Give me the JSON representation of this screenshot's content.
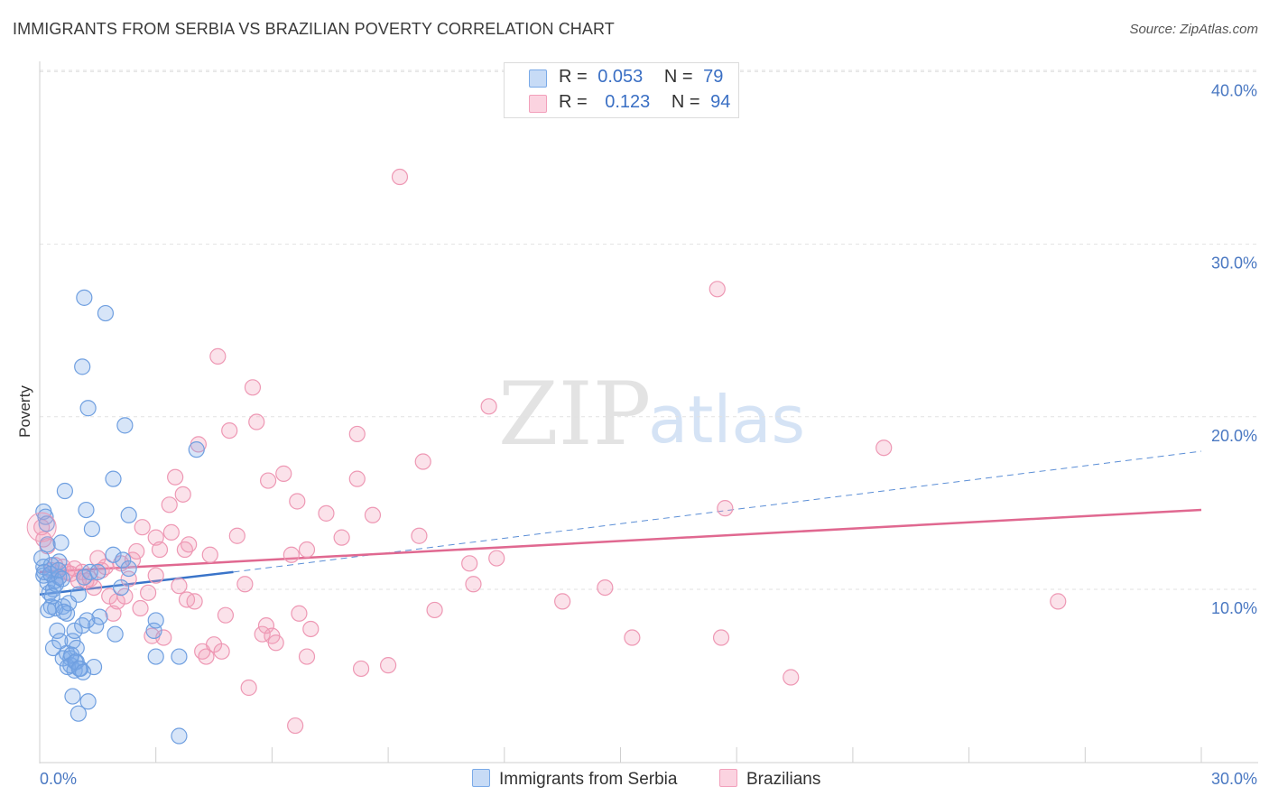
{
  "title": "IMMIGRANTS FROM SERBIA VS BRAZILIAN POVERTY CORRELATION CHART",
  "source": "Source: ZipAtlas.com",
  "watermark": {
    "zip": "ZIP",
    "atlas": "atlas"
  },
  "legend": {
    "rows": [
      {
        "r_label": "R =",
        "r_value": "0.053",
        "n_label": "N =",
        "n_value": "79",
        "color": "#7aaae8"
      },
      {
        "r_label": "R =",
        "r_value": "0.123",
        "n_label": "N =",
        "n_value": "94",
        "color": "#f2a0bb"
      }
    ]
  },
  "bottom_legend": [
    {
      "label": "Immigrants from Serbia",
      "color": "#7aaae8"
    },
    {
      "label": "Brazilians",
      "color": "#f2a0bb"
    }
  ],
  "chart_data": {
    "type": "scatter",
    "title": "IMMIGRANTS FROM SERBIA VS BRAZILIAN POVERTY CORRELATION CHART",
    "xlabel": "",
    "ylabel": "Poverty",
    "xlim": [
      0,
      30
    ],
    "ylim": [
      0,
      40
    ],
    "x_tick_labels": [
      "0.0%",
      "30.0%"
    ],
    "y_ticks": [
      10,
      20,
      30,
      40
    ],
    "y_tick_labels": [
      "10.0%",
      "20.0%",
      "30.0%",
      "40.0%"
    ],
    "grid": true,
    "series": [
      {
        "name": "Immigrants from Serbia",
        "color": "#7aaae8",
        "line_color": "#3a74c9",
        "trend": {
          "x0": 0,
          "y0": 9.7,
          "x1": 5.0,
          "y1": 11.0,
          "dashed_to_x": 30,
          "dashed_to_y": 18.0
        },
        "points": [
          [
            0.1,
            14.5
          ],
          [
            0.1,
            11.3
          ],
          [
            0.1,
            10.8
          ],
          [
            0.15,
            14.2
          ],
          [
            0.2,
            12.6
          ],
          [
            0.2,
            10.4
          ],
          [
            0.25,
            9.8
          ],
          [
            0.3,
            9.0
          ],
          [
            0.3,
            11.4
          ],
          [
            0.35,
            10.0
          ],
          [
            0.35,
            6.6
          ],
          [
            0.4,
            10.5
          ],
          [
            0.4,
            8.9
          ],
          [
            0.45,
            7.6
          ],
          [
            0.5,
            11.6
          ],
          [
            0.5,
            10.7
          ],
          [
            0.55,
            12.7
          ],
          [
            0.6,
            9.0
          ],
          [
            0.6,
            6.0
          ],
          [
            0.65,
            15.7
          ],
          [
            0.7,
            8.6
          ],
          [
            0.7,
            6.3
          ],
          [
            0.75,
            9.2
          ],
          [
            0.8,
            6.0
          ],
          [
            0.8,
            5.6
          ],
          [
            0.85,
            7.0
          ],
          [
            0.85,
            3.8
          ],
          [
            0.9,
            7.6
          ],
          [
            0.9,
            5.3
          ],
          [
            0.95,
            6.6
          ],
          [
            0.95,
            5.8
          ],
          [
            1.0,
            9.7
          ],
          [
            1.0,
            2.8
          ],
          [
            1.05,
            5.4
          ],
          [
            1.1,
            22.9
          ],
          [
            1.1,
            7.9
          ],
          [
            1.15,
            26.9
          ],
          [
            1.15,
            10.7
          ],
          [
            1.2,
            14.6
          ],
          [
            1.25,
            20.5
          ],
          [
            1.25,
            3.5
          ],
          [
            1.3,
            11.0
          ],
          [
            1.35,
            13.5
          ],
          [
            1.4,
            5.5
          ],
          [
            1.45,
            7.9
          ],
          [
            1.5,
            11.0
          ],
          [
            1.55,
            8.4
          ],
          [
            1.7,
            26.0
          ],
          [
            1.9,
            12.0
          ],
          [
            1.9,
            16.4
          ],
          [
            1.95,
            7.4
          ],
          [
            2.1,
            10.1
          ],
          [
            2.15,
            11.7
          ],
          [
            2.2,
            19.5
          ],
          [
            2.3,
            11.2
          ],
          [
            2.3,
            14.3
          ],
          [
            2.95,
            7.6
          ],
          [
            3.0,
            8.2
          ],
          [
            3.0,
            6.1
          ],
          [
            3.6,
            6.1
          ],
          [
            3.6,
            1.5
          ],
          [
            4.05,
            18.1
          ],
          [
            0.05,
            11.8
          ],
          [
            0.12,
            11.0
          ],
          [
            0.22,
            8.8
          ],
          [
            0.32,
            9.6
          ],
          [
            0.42,
            10.3
          ],
          [
            0.52,
            7.0
          ],
          [
            0.62,
            8.7
          ],
          [
            0.72,
            5.5
          ],
          [
            0.82,
            6.2
          ],
          [
            0.92,
            5.8
          ],
          [
            1.02,
            5.4
          ],
          [
            1.12,
            5.2
          ],
          [
            1.22,
            8.2
          ],
          [
            0.18,
            13.8
          ],
          [
            0.28,
            10.9
          ],
          [
            0.48,
            11.1
          ],
          [
            0.58,
            10.6
          ]
        ]
      },
      {
        "name": "Brazilians",
        "color": "#f2a0bb",
        "line_color": "#e06890",
        "trend": {
          "x0": 0,
          "y0": 11.0,
          "x1": 30,
          "y1": 14.6
        },
        "points": [
          [
            0.05,
            13.6
          ],
          [
            0.1,
            12.9
          ],
          [
            0.2,
            12.5
          ],
          [
            0.3,
            11.1
          ],
          [
            0.5,
            10.7
          ],
          [
            0.6,
            11.3
          ],
          [
            0.7,
            11.0
          ],
          [
            0.8,
            10.9
          ],
          [
            0.9,
            11.2
          ],
          [
            1.0,
            10.5
          ],
          [
            1.1,
            11.0
          ],
          [
            1.2,
            10.5
          ],
          [
            1.3,
            10.6
          ],
          [
            1.4,
            10.1
          ],
          [
            1.5,
            11.8
          ],
          [
            1.6,
            11.1
          ],
          [
            1.7,
            11.3
          ],
          [
            1.8,
            9.6
          ],
          [
            1.9,
            8.6
          ],
          [
            2.0,
            9.3
          ],
          [
            2.1,
            11.5
          ],
          [
            2.2,
            9.6
          ],
          [
            2.3,
            10.6
          ],
          [
            2.4,
            11.7
          ],
          [
            2.5,
            12.2
          ],
          [
            2.6,
            8.9
          ],
          [
            2.65,
            13.6
          ],
          [
            2.8,
            9.8
          ],
          [
            2.9,
            7.3
          ],
          [
            3.0,
            10.8
          ],
          [
            3.0,
            13.0
          ],
          [
            3.1,
            12.3
          ],
          [
            3.2,
            7.2
          ],
          [
            3.35,
            14.9
          ],
          [
            3.4,
            13.3
          ],
          [
            3.5,
            16.5
          ],
          [
            3.6,
            10.2
          ],
          [
            3.7,
            15.5
          ],
          [
            3.75,
            12.3
          ],
          [
            3.8,
            9.4
          ],
          [
            3.85,
            12.6
          ],
          [
            4.0,
            9.3
          ],
          [
            4.1,
            18.4
          ],
          [
            4.2,
            6.4
          ],
          [
            4.3,
            6.1
          ],
          [
            4.4,
            12.0
          ],
          [
            4.5,
            6.8
          ],
          [
            4.6,
            23.5
          ],
          [
            4.7,
            6.4
          ],
          [
            4.8,
            8.5
          ],
          [
            4.9,
            19.2
          ],
          [
            5.1,
            13.1
          ],
          [
            5.3,
            10.3
          ],
          [
            5.4,
            4.3
          ],
          [
            5.5,
            21.7
          ],
          [
            5.6,
            19.7
          ],
          [
            5.75,
            7.4
          ],
          [
            5.85,
            7.9
          ],
          [
            5.9,
            16.3
          ],
          [
            6.0,
            7.3
          ],
          [
            6.1,
            6.9
          ],
          [
            6.3,
            16.7
          ],
          [
            6.5,
            12.0
          ],
          [
            6.6,
            2.1
          ],
          [
            6.65,
            15.1
          ],
          [
            6.7,
            8.6
          ],
          [
            6.9,
            12.3
          ],
          [
            6.9,
            6.1
          ],
          [
            7.0,
            7.7
          ],
          [
            7.4,
            14.4
          ],
          [
            7.8,
            13.0
          ],
          [
            8.2,
            16.4
          ],
          [
            8.2,
            19.0
          ],
          [
            8.3,
            5.4
          ],
          [
            8.6,
            14.3
          ],
          [
            9.0,
            5.6
          ],
          [
            9.3,
            33.9
          ],
          [
            9.8,
            13.1
          ],
          [
            9.9,
            17.4
          ],
          [
            10.2,
            8.8
          ],
          [
            11.1,
            11.5
          ],
          [
            11.2,
            10.3
          ],
          [
            11.6,
            20.6
          ],
          [
            11.8,
            11.8
          ],
          [
            13.5,
            9.3
          ],
          [
            14.6,
            10.1
          ],
          [
            15.3,
            7.2
          ],
          [
            17.5,
            27.4
          ],
          [
            17.6,
            7.2
          ],
          [
            17.7,
            14.7
          ],
          [
            19.4,
            4.9
          ],
          [
            21.8,
            18.2
          ],
          [
            26.3,
            9.3
          ],
          [
            0.4,
            11.4
          ]
        ]
      }
    ]
  }
}
